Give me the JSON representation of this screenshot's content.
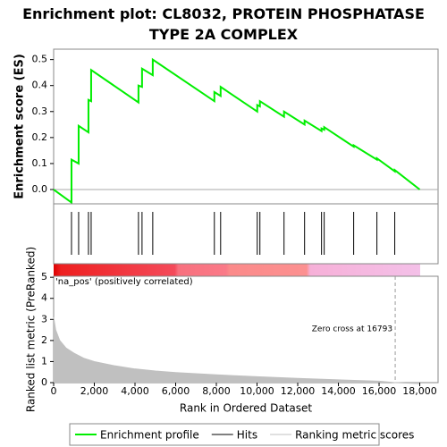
{
  "chart_data": [
    {
      "type": "line",
      "title": "Enrichment plot: CL8032, PROTEIN PHOSPHATASE TYPE 2A COMPLEX",
      "y_label": "Enrichment score (ES)",
      "xlim": [
        0,
        18900
      ],
      "ylim": [
        -0.055,
        0.54
      ],
      "yticks": [
        {
          "value": 0,
          "label": "0.0"
        },
        0.1,
        0.2,
        0.3,
        0.4,
        0.5
      ],
      "series": [
        {
          "name": "Enrichment profile",
          "color": "#00ee00",
          "x": [
            0,
            878,
            878,
            1229,
            1229,
            1712,
            1712,
            1844,
            1844,
            4171,
            4171,
            4346,
            4346,
            4873,
            4873,
            7902,
            7902,
            8210,
            8210,
            10010,
            10010,
            10141,
            10141,
            11327,
            11327,
            12337,
            12337,
            13171,
            13171,
            13302,
            13302,
            14751,
            14751,
            15893,
            15893,
            16771,
            16771,
            18000
          ],
          "values": [
            0,
            -0.05,
            0.115,
            0.1,
            0.245,
            0.22,
            0.345,
            0.34,
            0.46,
            0.335,
            0.4,
            0.395,
            0.465,
            0.44,
            0.5,
            0.34,
            0.375,
            0.36,
            0.395,
            0.3,
            0.325,
            0.32,
            0.34,
            0.28,
            0.3,
            0.25,
            0.265,
            0.225,
            0.235,
            0.23,
            0.24,
            0.165,
            0.17,
            0.115,
            0.12,
            0.07,
            0.075,
            0
          ]
        }
      ]
    },
    {
      "type": "rug",
      "xlim": [
        0,
        18900
      ],
      "series": [
        {
          "name": "Hits",
          "color": "#000000",
          "x": [
            878,
            1229,
            1712,
            1844,
            4171,
            4346,
            4873,
            7902,
            8210,
            10010,
            10141,
            11327,
            12337,
            13171,
            13302,
            14751,
            15893,
            16771
          ]
        }
      ]
    },
    {
      "type": "area",
      "label": "'na_pos' (positively correlated)",
      "annotation": "Zero cross at 16793",
      "zero_cross": 16793,
      "x_label": "Rank in Ordered Dataset",
      "y_label": "Ranked list metric (PreRanked)",
      "xlim": [
        0,
        18900
      ],
      "ylim": [
        0,
        5.05
      ],
      "xticks": [
        0,
        {
          "value": 2000,
          "label": "2,000"
        },
        {
          "value": 4000,
          "label": "4,000"
        },
        {
          "value": 6000,
          "label": "6,000"
        },
        {
          "value": 8000,
          "label": "8,000"
        },
        {
          "value": 10000,
          "label": "10,000"
        },
        {
          "value": 12000,
          "label": "12,000"
        },
        {
          "value": 14000,
          "label": "14,000"
        },
        {
          "value": 16000,
          "label": "16,000"
        },
        {
          "value": 18000,
          "label": "18,000"
        }
      ],
      "yticks": [
        0,
        1,
        2,
        3,
        4,
        5
      ],
      "series": [
        {
          "name": "Ranking metric scores",
          "color": "#c0c0c0",
          "x": [
            0,
            100,
            300,
            600,
            1000,
            1500,
            2000,
            3000,
            4000,
            5000,
            6000,
            8000,
            10000,
            12000,
            14000,
            16000,
            16793,
            18000
          ],
          "values": [
            3.1,
            2.5,
            2.0,
            1.65,
            1.4,
            1.15,
            1.0,
            0.8,
            0.65,
            0.55,
            0.48,
            0.37,
            0.28,
            0.2,
            0.13,
            0.07,
            0,
            -0.05
          ]
        }
      ]
    }
  ]
}
